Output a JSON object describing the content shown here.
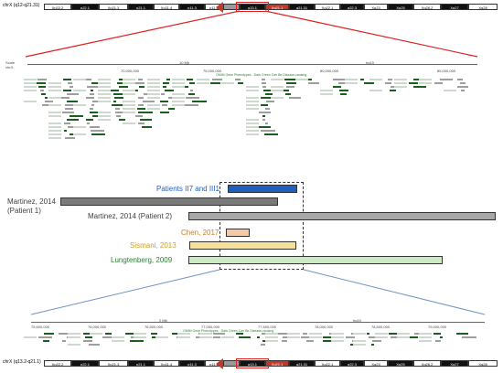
{
  "top_ideogram": {
    "label": "chrX (q12-q21.31)",
    "bands": [
      "Xp22.2",
      "p22.1",
      "Xp21.3",
      "p21.1",
      "Xp11.4",
      "p11.3",
      "p11.2",
      "",
      "q13.1",
      "Xq21.1",
      "q21.31",
      "Xq22.1",
      "q22.3",
      "Xq23",
      "Xq25",
      "Xq26.2",
      "Xq27",
      "Xq28"
    ]
  },
  "bottom_ideogram": {
    "label": "chrX (q13.2-q21.1)",
    "bands": [
      "Xp22.2",
      "p22.1",
      "Xp21.3",
      "p21.1",
      "Xp11.4",
      "p11.3",
      "p11.2",
      "",
      "q13.1",
      "Xq21.1",
      "q21.31",
      "Xq22.1",
      "q22.3",
      "Xq23",
      "Xq25",
      "Xq26.2",
      "Xq27",
      "Xq28"
    ]
  },
  "upper_browser": {
    "scale": "10 Mb",
    "assembly": "hg19",
    "positions": [
      "70,000,000",
      "75,000,000",
      "80,000,000",
      "85,000,000"
    ],
    "track_title": "OMIM Gene Phenotypes - Dark Green Can Be Disease-causing",
    "side_label": "Scale chrX:"
  },
  "lower_browser": {
    "scale": "2 Mb",
    "assembly": "hg19",
    "positions": [
      "75,500,000",
      "76,000,000",
      "76,500,000",
      "77,000,000",
      "77,500,000",
      "78,000,000",
      "78,500,000",
      "79,000,000"
    ],
    "track_title": "OMIM Gene Phenotypes - Dark Green Can Be Disease-causing"
  },
  "deletions": [
    {
      "label": "Patients II7 and III1",
      "color": "#1f5fbf",
      "label_color": "#1f5fbf"
    },
    {
      "label": "Martinez, 2014\n(Patient 1)",
      "color": "#7a7a7a",
      "label_color": "#404040"
    },
    {
      "label": "Martinez, 2014 (Patient 2)",
      "color": "#a8a8a8",
      "label_color": "#404040"
    },
    {
      "label": "Chen, 2017",
      "color": "#f4c9a6",
      "label_color": "#c87f2a"
    },
    {
      "label": "Sismani, 2013",
      "color": "#f7e19a",
      "label_color": "#c9a227"
    },
    {
      "label": "Lungtenberg, 2009",
      "color": "#cdebc3",
      "label_color": "#2e7d32"
    }
  ],
  "colors": {
    "highlight_red": "#e02020",
    "zoom_blue": "#6f93c8",
    "gene_dark_green": "#1b5e20"
  }
}
